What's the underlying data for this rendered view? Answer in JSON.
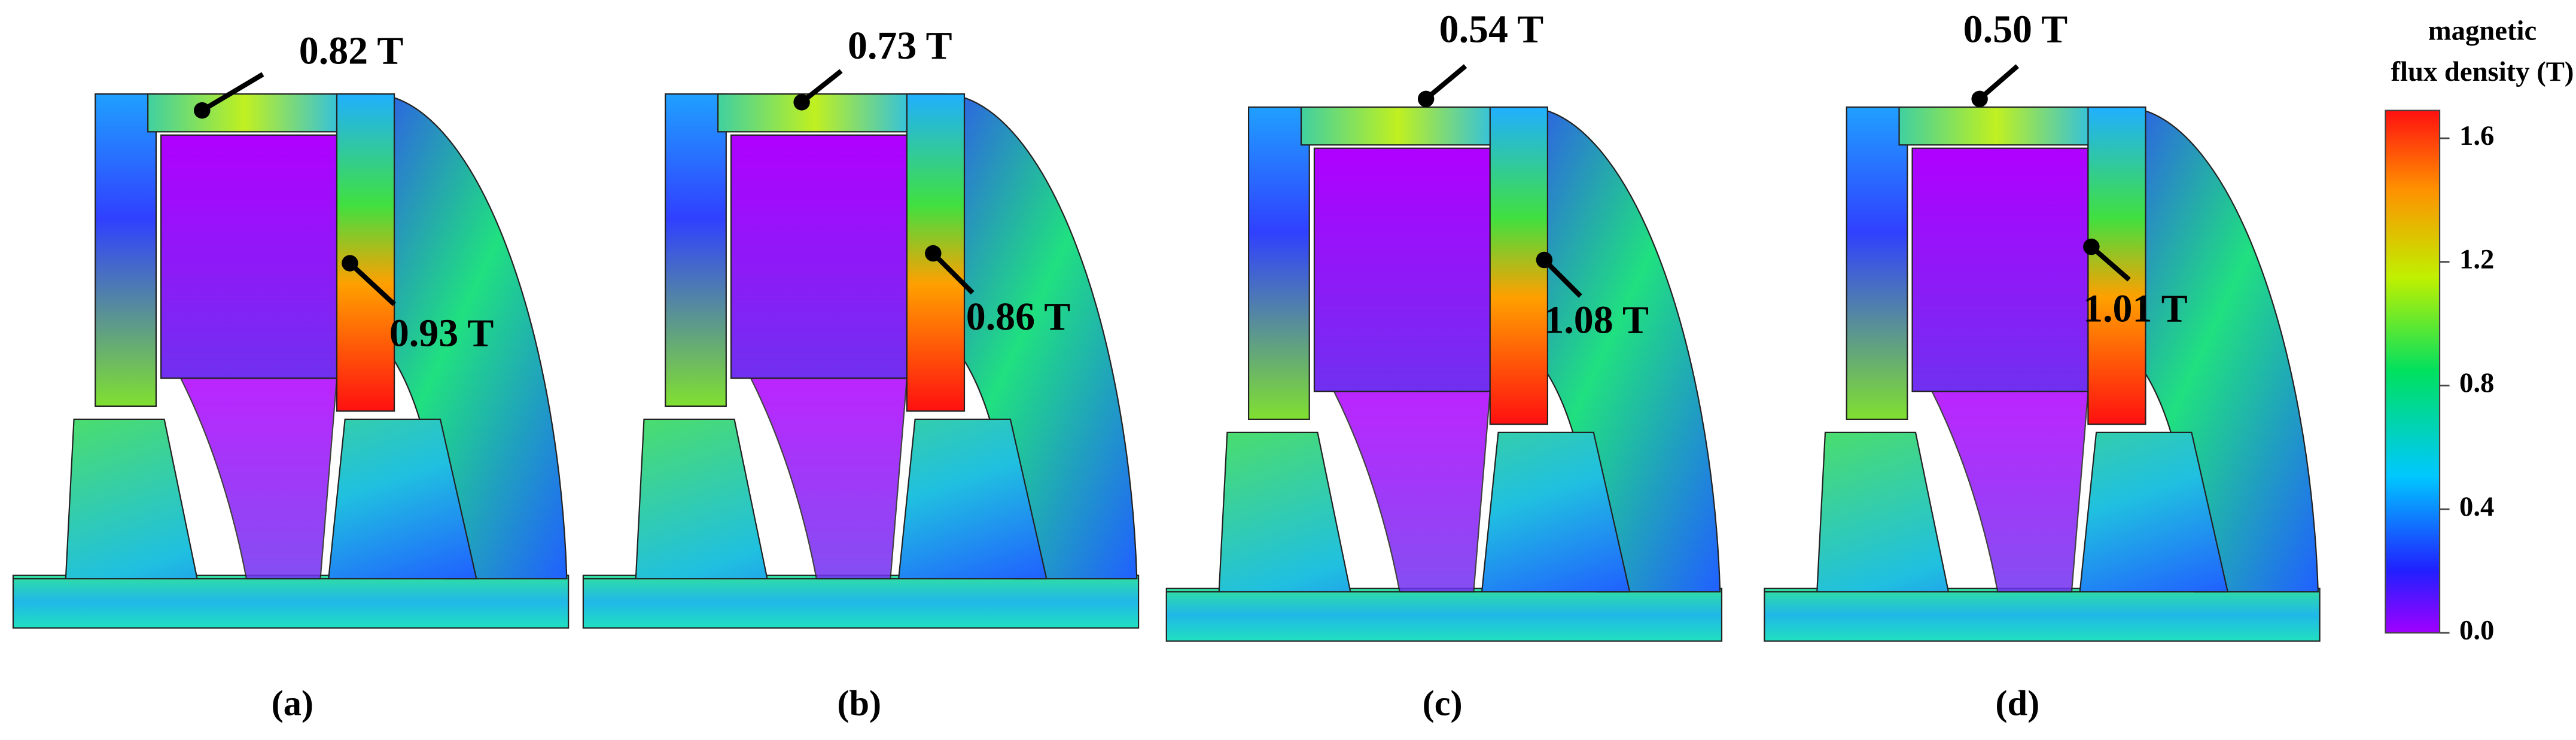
{
  "panels": [
    {
      "caption": "(a)",
      "yoke_label": "0.82 T",
      "pole_label": "0.93 T"
    },
    {
      "caption": "(b)",
      "yoke_label": "0.73 T",
      "pole_label": "0.86 T"
    },
    {
      "caption": "(c)",
      "yoke_label": "0.54 T",
      "pole_label": "1.08 T"
    },
    {
      "caption": "(d)",
      "yoke_label": "0.50 T",
      "pole_label": "1.01 T"
    }
  ],
  "colorbar": {
    "title_lines": [
      "magnetic",
      "flux density (T)"
    ],
    "lim": [
      0,
      1.69
    ],
    "ticks": [
      {
        "value": 0,
        "label": "0.0"
      },
      {
        "value": 0.4,
        "label": "0.4"
      },
      {
        "value": 0.8,
        "label": "0.8"
      },
      {
        "value": 1.2,
        "label": "1.2"
      },
      {
        "value": 1.6,
        "label": "1.6"
      }
    ]
  }
}
